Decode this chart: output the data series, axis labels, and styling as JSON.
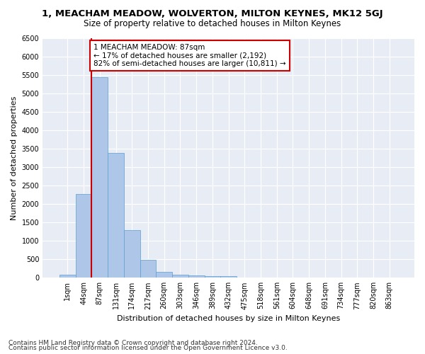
{
  "title_line1": "1, MEACHAM MEADOW, WOLVERTON, MILTON KEYNES, MK12 5GJ",
  "title_line2": "Size of property relative to detached houses in Milton Keynes",
  "xlabel": "Distribution of detached houses by size in Milton Keynes",
  "ylabel": "Number of detached properties",
  "footnote_line1": "Contains HM Land Registry data © Crown copyright and database right 2024.",
  "footnote_line2": "Contains public sector information licensed under the Open Government Licence v3.0.",
  "bar_labels": [
    "1sqm",
    "44sqm",
    "87sqm",
    "131sqm",
    "174sqm",
    "217sqm",
    "260sqm",
    "303sqm",
    "346sqm",
    "389sqm",
    "432sqm",
    "475sqm",
    "518sqm",
    "561sqm",
    "604sqm",
    "648sqm",
    "691sqm",
    "734sqm",
    "777sqm",
    "820sqm",
    "863sqm"
  ],
  "bar_values": [
    75,
    2270,
    5450,
    3390,
    1290,
    480,
    165,
    85,
    65,
    45,
    35,
    10,
    10,
    5,
    5,
    0,
    0,
    0,
    0,
    0,
    0
  ],
  "bar_color": "#aec6e8",
  "bar_edge_color": "#5a9fd4",
  "highlight_bar_index": 2,
  "highlight_color": "#cc0000",
  "annotation_text": "1 MEACHAM MEADOW: 87sqm\n← 17% of detached houses are smaller (2,192)\n82% of semi-detached houses are larger (10,811) →",
  "annotation_box_color": "#ffffff",
  "annotation_box_edge_color": "#cc0000",
  "ylim": [
    0,
    6500
  ],
  "yticks": [
    0,
    500,
    1000,
    1500,
    2000,
    2500,
    3000,
    3500,
    4000,
    4500,
    5000,
    5500,
    6000,
    6500
  ],
  "fig_bg_color": "#ffffff",
  "plot_bg_color": "#e8edf5",
  "grid_color": "#ffffff",
  "title_fontsize": 9.5,
  "subtitle_fontsize": 8.5,
  "axis_label_fontsize": 8,
  "tick_fontsize": 7,
  "annotation_fontsize": 7.5,
  "footnote_fontsize": 6.5
}
